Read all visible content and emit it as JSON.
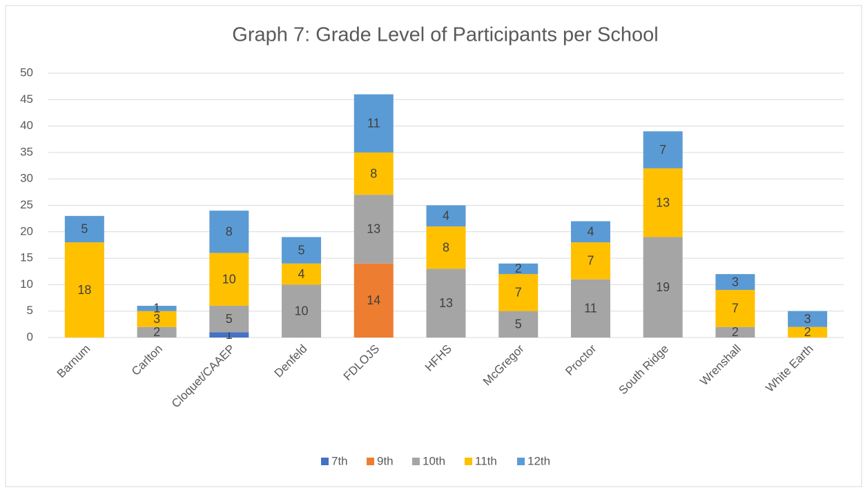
{
  "chart_data": {
    "type": "stacked_bar",
    "title": "Graph 7: Grade Level of Participants per School",
    "categories": [
      "Barnum",
      "Carlton",
      "Cloquet/CAAEP",
      "Denfeld",
      "FDLOJS",
      "HFHS",
      "McGregor",
      "Proctor",
      "South Ridge",
      "Wrenshall",
      "White Earth"
    ],
    "series": [
      {
        "name": "7th",
        "color": "#4472c4",
        "values": [
          null,
          null,
          1,
          null,
          null,
          null,
          null,
          null,
          null,
          null,
          null
        ]
      },
      {
        "name": "9th",
        "color": "#ed7d31",
        "values": [
          null,
          null,
          null,
          null,
          14,
          null,
          null,
          null,
          null,
          null,
          null
        ]
      },
      {
        "name": "10th",
        "color": "#a5a5a5",
        "values": [
          null,
          2,
          5,
          10,
          13,
          13,
          5,
          11,
          19,
          2,
          null
        ]
      },
      {
        "name": "11th",
        "color": "#ffc000",
        "values": [
          18,
          3,
          10,
          4,
          8,
          8,
          7,
          7,
          13,
          7,
          2
        ]
      },
      {
        "name": "12th",
        "color": "#5b9bd5",
        "values": [
          5,
          1,
          8,
          5,
          11,
          4,
          2,
          4,
          7,
          3,
          3
        ]
      }
    ],
    "ylim": [
      0,
      50
    ],
    "yticks": [
      0,
      5,
      10,
      15,
      20,
      25,
      30,
      35,
      40,
      45,
      50
    ],
    "grid": true,
    "legend": "bottom"
  }
}
